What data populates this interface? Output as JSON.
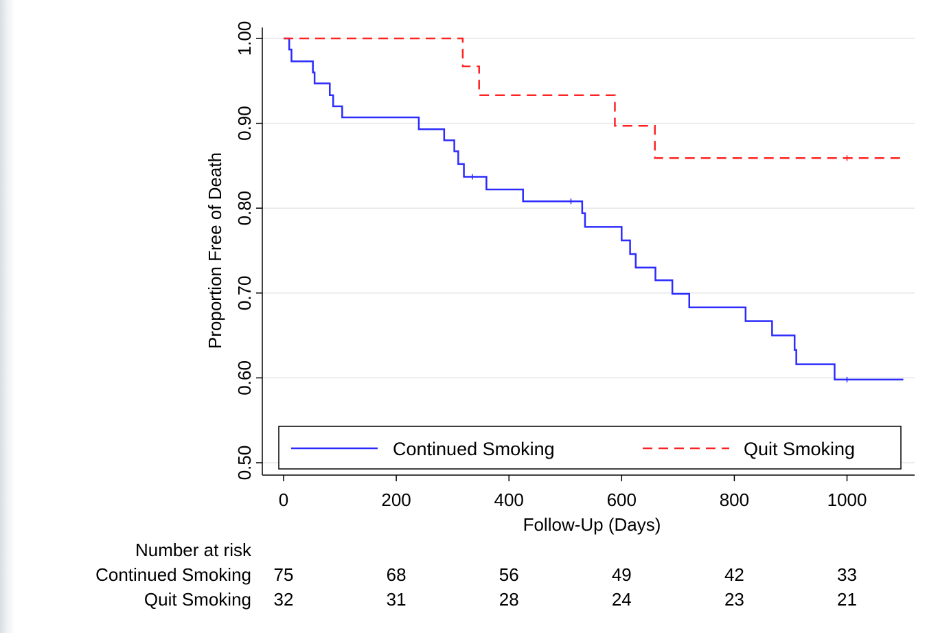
{
  "chart_data": {
    "type": "line",
    "subtype": "kaplan-meier step",
    "xlabel": "Follow-Up (Days)",
    "ylabel": "Proportion Free of Death",
    "xlim": [
      0,
      1100
    ],
    "ylim": [
      0.5,
      1.0
    ],
    "x_ticks": [
      "0",
      "200",
      "400",
      "600",
      "800",
      "1000"
    ],
    "y_ticks": [
      "0.50",
      "0.60",
      "0.70",
      "0.80",
      "0.90",
      "1.00"
    ],
    "grid": "horizontal",
    "legend_position": "bottom-inside",
    "series": [
      {
        "name": "Continued Smoking",
        "color": "#2b2bff",
        "style": "solid",
        "x": [
          0,
          10,
          14,
          52,
          55,
          82,
          88,
          104,
          240,
          285,
          303,
          310,
          320,
          360,
          425,
          530,
          535,
          565,
          600,
          615,
          625,
          660,
          690,
          720,
          740,
          820,
          867,
          907,
          910,
          978,
          1002,
          1100
        ],
        "y": [
          1.0,
          0.987,
          0.973,
          0.96,
          0.947,
          0.933,
          0.92,
          0.907,
          0.893,
          0.88,
          0.867,
          0.852,
          0.837,
          0.822,
          0.808,
          0.794,
          0.778,
          0.778,
          0.762,
          0.746,
          0.73,
          0.715,
          0.699,
          0.683,
          0.683,
          0.667,
          0.65,
          0.633,
          0.616,
          0.598,
          0.598,
          0.598
        ]
      },
      {
        "name": "Quit Smoking",
        "color": "#ff2222",
        "style": "dashed",
        "x": [
          0,
          318,
          347,
          588,
          659,
          1100
        ],
        "y": [
          1.0,
          0.967,
          0.933,
          0.897,
          0.859,
          0.859
        ]
      }
    ],
    "censor_marks": {
      "Continued Smoking": [
        335,
        510,
        1000
      ],
      "Quit Smoking": [
        1000
      ]
    },
    "risk_table": {
      "title": "Number at risk",
      "times": [
        0,
        200,
        400,
        600,
        800,
        1000
      ],
      "rows": [
        {
          "label": "Continued Smoking",
          "values": [
            "75",
            "68",
            "56",
            "49",
            "42",
            "33"
          ]
        },
        {
          "label": "Quit Smoking",
          "values": [
            "32",
            "31",
            "28",
            "24",
            "23",
            "21"
          ]
        }
      ]
    }
  }
}
